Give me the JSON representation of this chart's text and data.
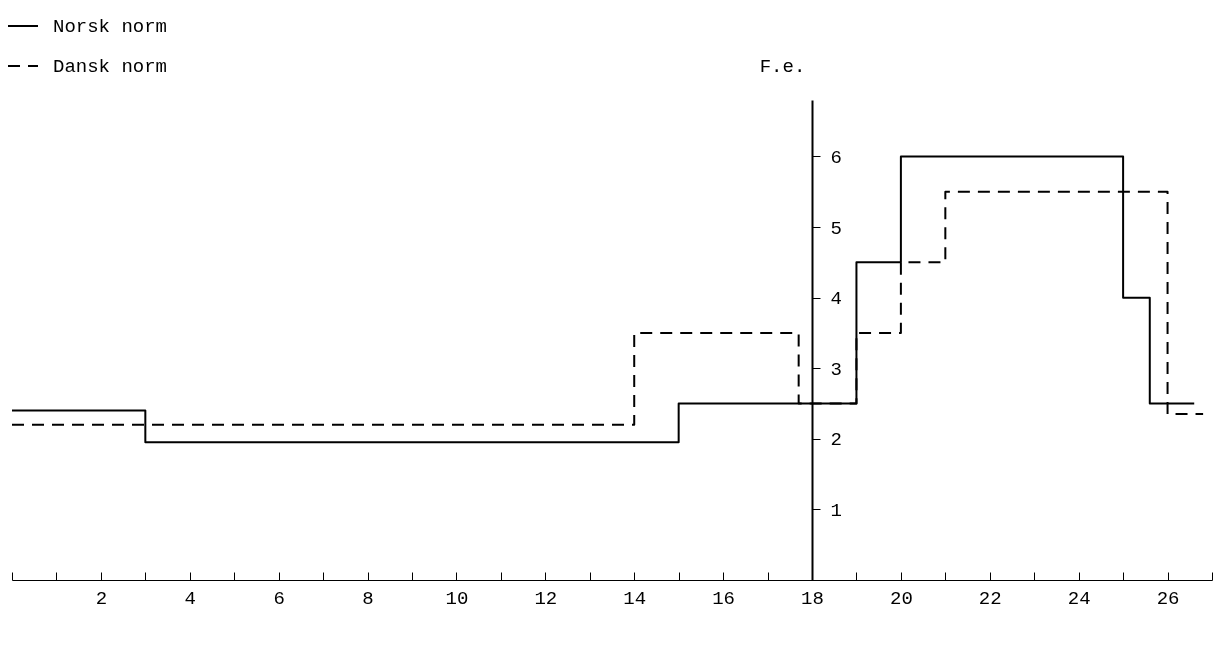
{
  "chart_data": {
    "type": "step",
    "ylabel": "F.e.",
    "xlim": [
      0,
      27
    ],
    "xticks": [
      {
        "value": 0,
        "label": null
      },
      {
        "value": 1,
        "label": null
      },
      2,
      {
        "value": 3,
        "label": null
      },
      4,
      {
        "value": 5,
        "label": null
      },
      6,
      {
        "value": 7,
        "label": null
      },
      8,
      {
        "value": 9,
        "label": null
      },
      10,
      {
        "value": 11,
        "label": null
      },
      12,
      {
        "value": 13,
        "label": null
      },
      14,
      {
        "value": 15,
        "label": null
      },
      16,
      {
        "value": 17,
        "label": null
      },
      18,
      {
        "value": 19,
        "label": null
      },
      20,
      {
        "value": 21,
        "label": null
      },
      22,
      {
        "value": 23,
        "label": null
      },
      24,
      {
        "value": 25,
        "label": null
      },
      26,
      {
        "value": 27,
        "label": null
      }
    ],
    "ylim": [
      0,
      6.8
    ],
    "yticks": [
      1,
      2,
      3,
      4,
      5,
      6
    ],
    "grid": false,
    "legend": "top left",
    "marker": "none",
    "series": [
      {
        "name": "Norsk norm",
        "color": "#000000",
        "line_style": "solid",
        "x": [
          0,
          3,
          15,
          19,
          20,
          25,
          25.6,
          26.6
        ],
        "values": [
          2.4,
          1.95,
          2.5,
          4.5,
          6,
          4,
          2.5,
          2.5
        ]
      },
      {
        "name": "Dansk norm",
        "color": "#000000",
        "line_style": "dashed",
        "x": [
          0,
          14,
          17.7,
          19,
          20,
          21,
          26,
          26.8
        ],
        "values": [
          2.2,
          3.5,
          2.5,
          3.5,
          4.5,
          5.5,
          2.35,
          2.35
        ]
      }
    ]
  }
}
